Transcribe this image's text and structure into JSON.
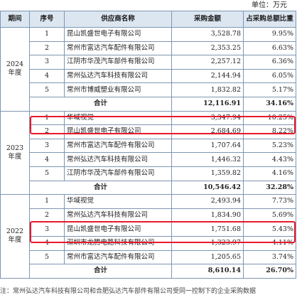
{
  "unit_label": "单位：万元",
  "headers": {
    "period": "期间",
    "seq": "序号",
    "supplier": "供应商名称",
    "amount": "采购金额",
    "ratio": "占采购总额比重"
  },
  "groups": [
    {
      "period_year": "2024",
      "period_suffix": "年度",
      "rows": [
        {
          "seq": "1",
          "name": "昆山凯盛世电子有限公司",
          "amount": "3,528.78",
          "pct": "9.95%"
        },
        {
          "seq": "2",
          "name": "常州市富达汽车配件有限公司",
          "amount": "2,353.25",
          "pct": "6.63%"
        },
        {
          "seq": "3",
          "name": "江阴市华茂汽车部件有限公司",
          "amount": "2,257.12",
          "pct": "6.36%"
        },
        {
          "seq": "4",
          "name": "常州弘达汽车科技有限公司",
          "amount": "2,144.94",
          "pct": "6.05%"
        },
        {
          "seq": "5",
          "name": "常州市博威塑业有限公司",
          "amount": "1,832.82",
          "pct": "5.17%"
        }
      ],
      "total": {
        "label": "合计",
        "amount": "12,116.91",
        "pct": "34.16%"
      }
    },
    {
      "period_year": "2023",
      "period_suffix": "年度",
      "rows": [
        {
          "seq": "1",
          "name": "华域视觉",
          "amount": "3,347.94",
          "pct": "10.25%"
        },
        {
          "seq": "2",
          "name": "昆山凯盛世电子有限公司",
          "amount": "2,684.69",
          "pct": "8.22%"
        },
        {
          "seq": "3",
          "name": "常州市富达汽车配件有限公司",
          "amount": "1,707.64",
          "pct": "5.23%"
        },
        {
          "seq": "4",
          "name": "常州弘达汽车科技有限公司",
          "amount": "1,446.32",
          "pct": "4.43%"
        },
        {
          "seq": "5",
          "name": "江阴市华茂汽车部件有限公司",
          "amount": "1,359.82",
          "pct": "4.16%"
        }
      ],
      "total": {
        "label": "合计",
        "amount": "10,546.42",
        "pct": "32.28%"
      }
    },
    {
      "period_year": "2022",
      "period_suffix": "年度",
      "rows": [
        {
          "seq": "1",
          "name": "华域视觉",
          "amount": "2,493.94",
          "pct": "7.73%"
        },
        {
          "seq": "2",
          "name": "常州弘达汽车科技有限公司",
          "amount": "1,834.90",
          "pct": "5.69%"
        },
        {
          "seq": "3",
          "name": "昆山凯盛世电子有限公司",
          "amount": "1,751.68",
          "pct": "5.43%"
        },
        {
          "seq": "4",
          "name": "深圳市龙腾电路科技有限公司",
          "amount": "1,323.97",
          "pct": "4.11%"
        },
        {
          "seq": "5",
          "name": "常州市富达汽车配件有限公司",
          "amount": "1,205.65",
          "pct": "3.74%"
        }
      ],
      "total": {
        "label": "合计",
        "amount": "8,610.14",
        "pct": "26.70%"
      }
    }
  ],
  "footnote": "注：常州弘达汽车科技有限公司和合肥弘达汽车部件有限公司受同一控制下的企业采购数据"
}
